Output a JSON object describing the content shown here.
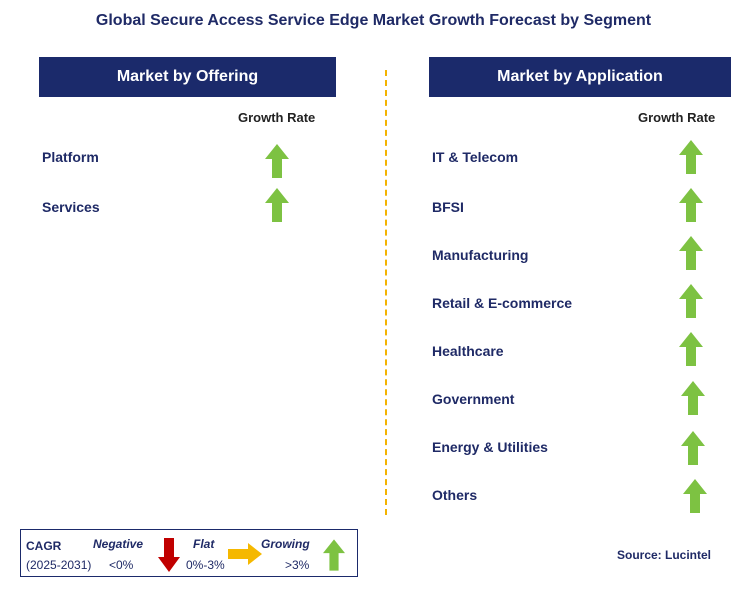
{
  "title": "Global Secure Access Service Edge Market Growth Forecast by Segment",
  "offering": {
    "header": "Market by Offering",
    "growth_rate_label": "Growth Rate",
    "items": [
      {
        "label": "Platform",
        "trend": "growing"
      },
      {
        "label": "Services",
        "trend": "growing"
      }
    ]
  },
  "application": {
    "header": "Market by Application",
    "growth_rate_label": "Growth Rate",
    "items": [
      {
        "label": "IT & Telecom",
        "trend": "growing"
      },
      {
        "label": "BFSI",
        "trend": "growing"
      },
      {
        "label": "Manufacturing",
        "trend": "growing"
      },
      {
        "label": "Retail & E-commerce",
        "trend": "growing"
      },
      {
        "label": "Healthcare",
        "trend": "growing"
      },
      {
        "label": "Government",
        "trend": "growing"
      },
      {
        "label": "Energy & Utilities",
        "trend": "growing"
      },
      {
        "label": "Others",
        "trend": "growing"
      }
    ]
  },
  "legend": {
    "cagr_label": "CAGR",
    "period": "(2025-2031)",
    "negative": {
      "label": "Negative",
      "range": "<0%",
      "icon": "red-down-arrow-icon"
    },
    "flat": {
      "label": "Flat",
      "range": "0%-3%",
      "icon": "orange-right-arrow-icon"
    },
    "growing": {
      "label": "Growing",
      "range": ">3%",
      "icon": "green-up-arrow-icon"
    }
  },
  "source": "Source: Lucintel",
  "colors": {
    "header_bg": "#1b2a6b",
    "title_text": "#1f2a66",
    "divider": "#f3b300",
    "arrow_green": "#7dc242",
    "arrow_red": "#c00000",
    "arrow_orange": "#f5b800"
  }
}
